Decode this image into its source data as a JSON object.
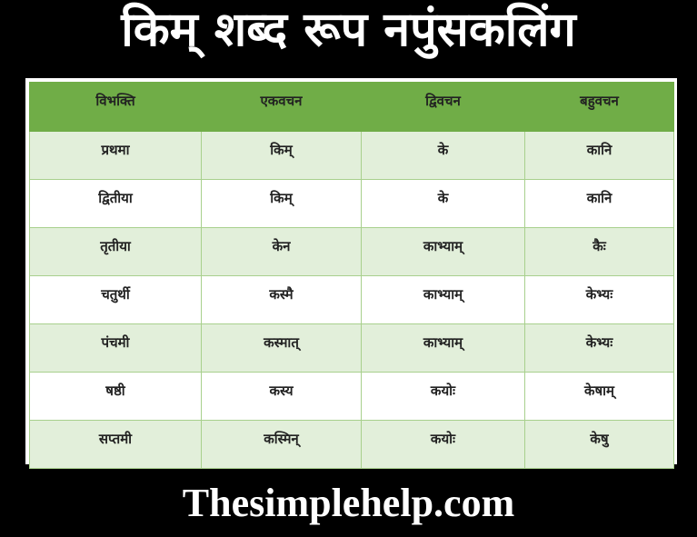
{
  "title": "किम् शब्द रूप नपुंसकलिंग",
  "table": {
    "headers": [
      "विभक्ति",
      "एकवचन",
      "द्विवचन",
      "बहुवचन"
    ],
    "rows": [
      [
        "प्रथमा",
        "किम्",
        "के",
        "कानि"
      ],
      [
        "द्वितीया",
        "किम्",
        "के",
        "कानि"
      ],
      [
        "तृतीया",
        "केन",
        "काभ्याम्",
        "कैः"
      ],
      [
        "चतुर्थी",
        "कस्मै",
        "काभ्याम्",
        "केभ्यः"
      ],
      [
        "पंचमी",
        "कस्मात्",
        "काभ्याम्",
        "केभ्यः"
      ],
      [
        "षष्ठी",
        "कस्य",
        "कयोः",
        "केषाम्"
      ],
      [
        "सप्तमी",
        "कस्मिन्",
        "कयोः",
        "केषु"
      ]
    ]
  },
  "footer": "Thesimplehelp.com",
  "colors": {
    "header_bg": "#70ad47",
    "band_bg": "#e2efda"
  }
}
